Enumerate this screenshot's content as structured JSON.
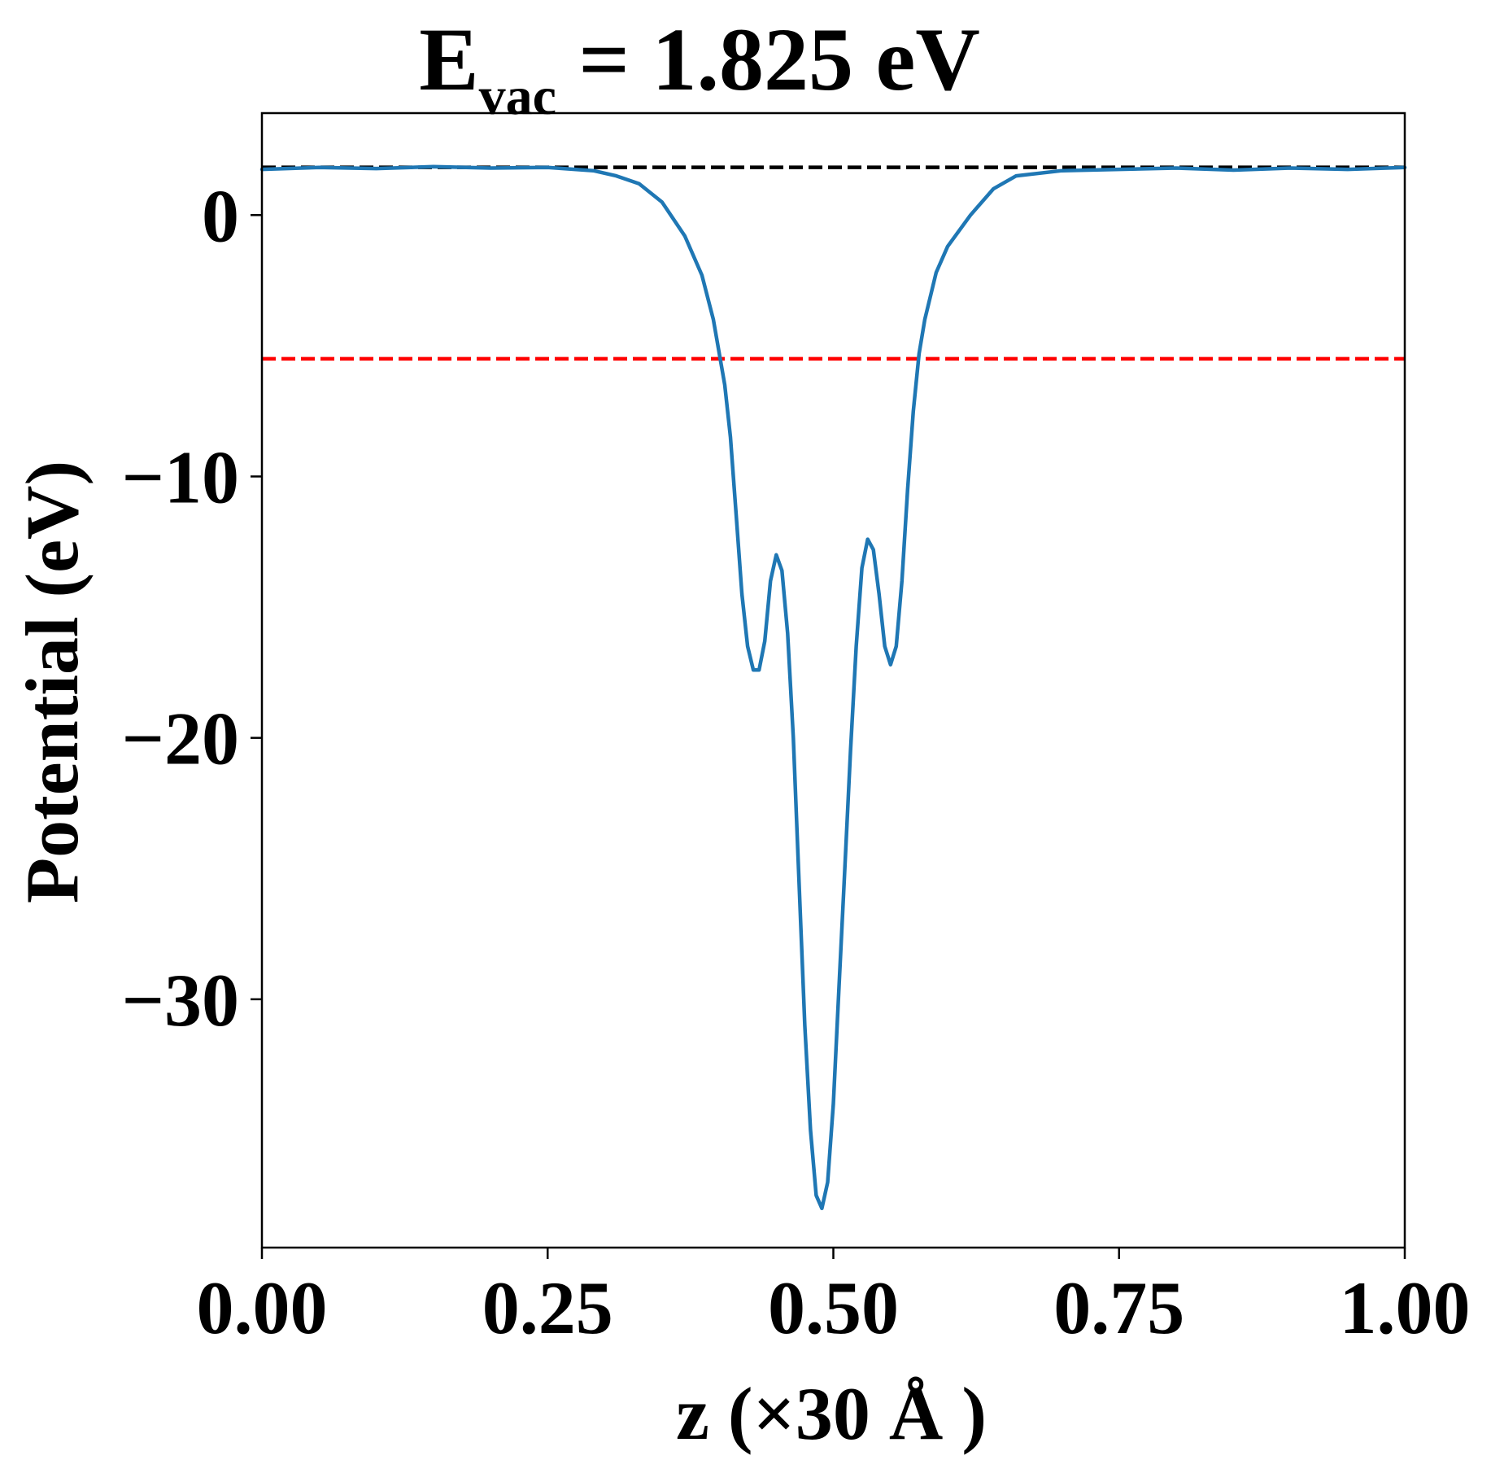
{
  "chart_data": {
    "type": "line",
    "title": {
      "symbol": "E",
      "subscript": "vac",
      "rest": " = 1.825 eV"
    },
    "xlabel": "z (×30 Å )",
    "ylabel": "Potential (eV)",
    "xlim": [
      0.0,
      1.0
    ],
    "ylim": [
      -39.5,
      3.9
    ],
    "x_ticks": [
      0.0,
      0.25,
      0.5,
      0.75,
      1.0
    ],
    "x_tick_labels": [
      "0.00",
      "0.25",
      "0.50",
      "0.75",
      "1.00"
    ],
    "y_ticks": [
      0,
      -10,
      -20,
      -30
    ],
    "y_tick_labels": [
      "0",
      "−10",
      "−20",
      "−30"
    ],
    "grid": false,
    "reference_lines": [
      {
        "y": 1.825,
        "color": "#000000",
        "style": "dashed"
      },
      {
        "y": -5.5,
        "color": "#ff0000",
        "style": "dashed"
      }
    ],
    "series": [
      {
        "color": "#1f77b4",
        "points": [
          [
            0.0,
            1.75
          ],
          [
            0.05,
            1.82
          ],
          [
            0.1,
            1.78
          ],
          [
            0.15,
            1.85
          ],
          [
            0.2,
            1.8
          ],
          [
            0.25,
            1.82
          ],
          [
            0.29,
            1.7
          ],
          [
            0.31,
            1.5
          ],
          [
            0.33,
            1.2
          ],
          [
            0.35,
            0.5
          ],
          [
            0.37,
            -0.8
          ],
          [
            0.385,
            -2.3
          ],
          [
            0.395,
            -4.0
          ],
          [
            0.405,
            -6.5
          ],
          [
            0.41,
            -8.5
          ],
          [
            0.415,
            -11.5
          ],
          [
            0.42,
            -14.5
          ],
          [
            0.425,
            -16.5
          ],
          [
            0.43,
            -17.4
          ],
          [
            0.435,
            -17.4
          ],
          [
            0.44,
            -16.3
          ],
          [
            0.445,
            -14.0
          ],
          [
            0.45,
            -13.0
          ],
          [
            0.455,
            -13.6
          ],
          [
            0.46,
            -16.0
          ],
          [
            0.465,
            -20.0
          ],
          [
            0.47,
            -25.5
          ],
          [
            0.475,
            -31.0
          ],
          [
            0.48,
            -35.0
          ],
          [
            0.485,
            -37.5
          ],
          [
            0.49,
            -38.0
          ],
          [
            0.495,
            -37.0
          ],
          [
            0.5,
            -34.0
          ],
          [
            0.505,
            -29.5
          ],
          [
            0.51,
            -25.0
          ],
          [
            0.515,
            -20.5
          ],
          [
            0.52,
            -16.5
          ],
          [
            0.525,
            -13.5
          ],
          [
            0.53,
            -12.4
          ],
          [
            0.535,
            -12.8
          ],
          [
            0.54,
            -14.5
          ],
          [
            0.545,
            -16.5
          ],
          [
            0.55,
            -17.2
          ],
          [
            0.555,
            -16.5
          ],
          [
            0.56,
            -14.0
          ],
          [
            0.565,
            -10.5
          ],
          [
            0.57,
            -7.5
          ],
          [
            0.575,
            -5.3
          ],
          [
            0.58,
            -4.0
          ],
          [
            0.59,
            -2.2
          ],
          [
            0.6,
            -1.2
          ],
          [
            0.62,
            0.0
          ],
          [
            0.64,
            1.0
          ],
          [
            0.66,
            1.5
          ],
          [
            0.7,
            1.7
          ],
          [
            0.75,
            1.75
          ],
          [
            0.8,
            1.8
          ],
          [
            0.85,
            1.72
          ],
          [
            0.9,
            1.8
          ],
          [
            0.95,
            1.75
          ],
          [
            1.0,
            1.82
          ]
        ]
      }
    ]
  }
}
